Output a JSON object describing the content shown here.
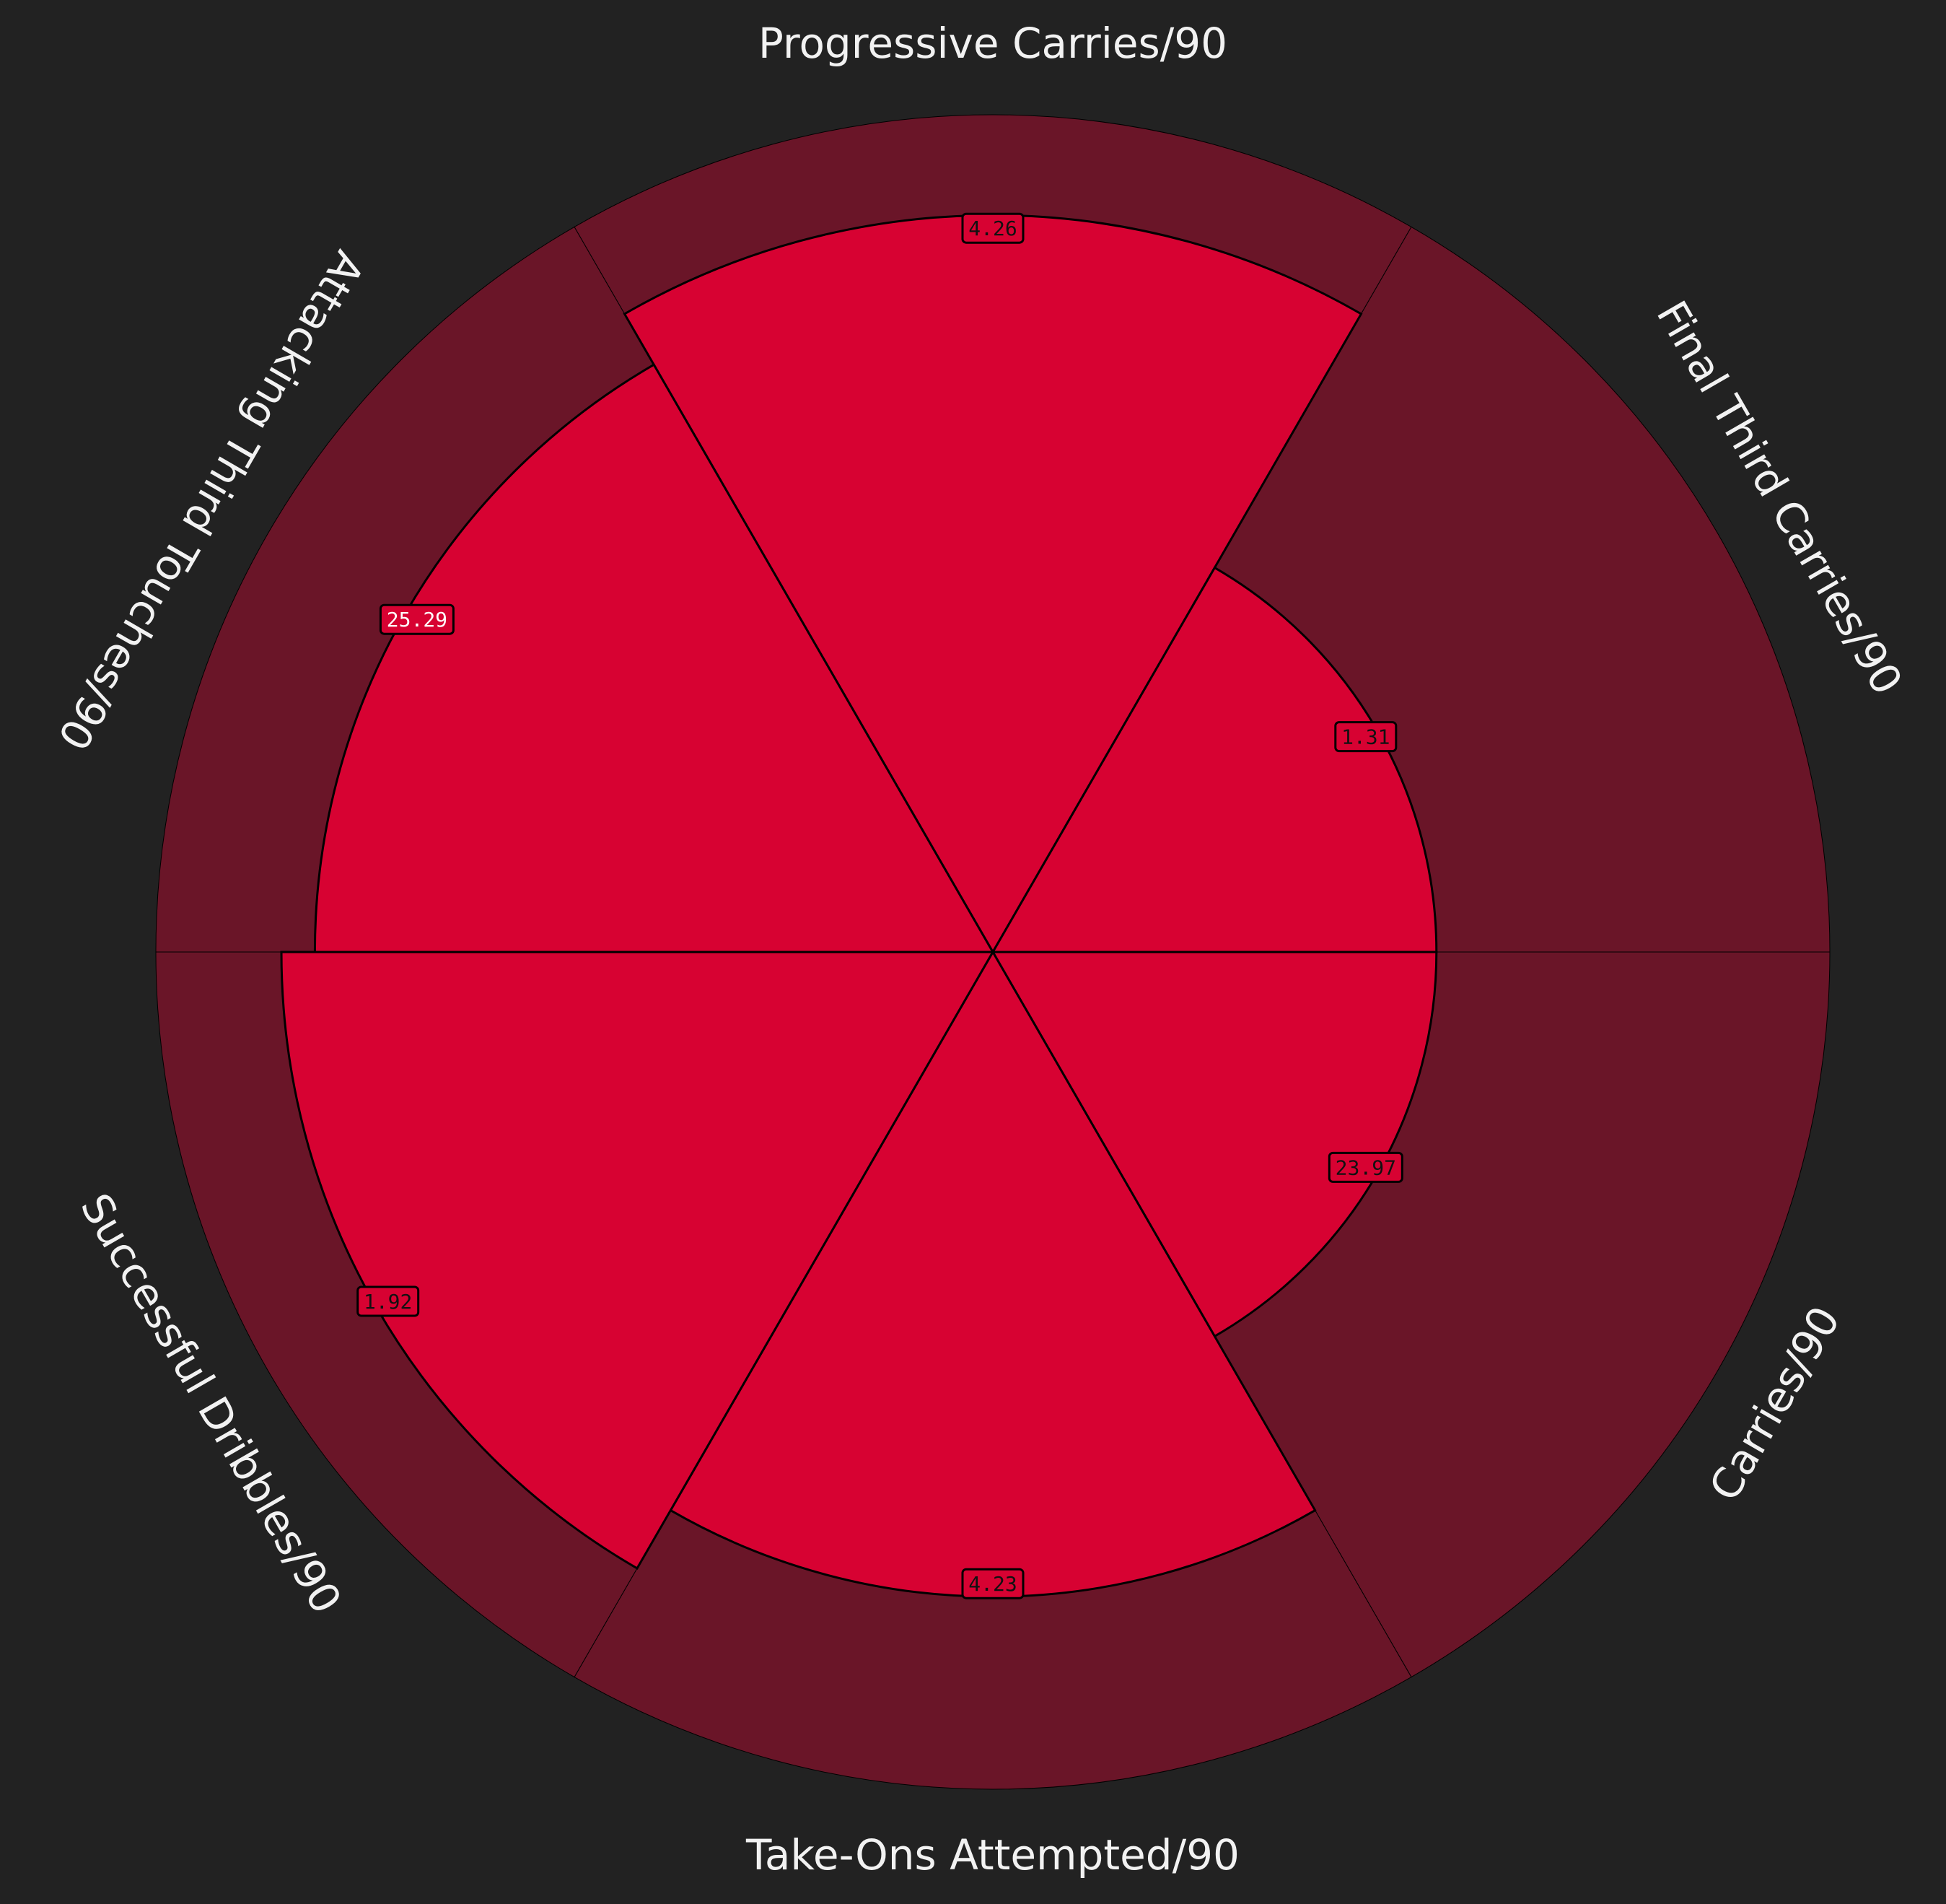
{
  "chart_data": {
    "type": "pizza",
    "params": [
      "Progressive Carries/90",
      "Final Third Carries/90",
      "Carries/90",
      "Take-Ons Attempted/90",
      "Successful Dribbles/90",
      "Attacking Third Touches/90"
    ],
    "value_labels": [
      "4.26",
      "1.31",
      "23.97",
      "4.23",
      "1.92",
      "25.29"
    ],
    "percentiles": [
      88,
      53,
      53,
      77,
      85,
      81
    ],
    "colors": {
      "background": "#222222",
      "slice": "#d70232",
      "slice_background": "#6a1528",
      "edge": "#000000",
      "label": "#f2f2f2"
    }
  }
}
